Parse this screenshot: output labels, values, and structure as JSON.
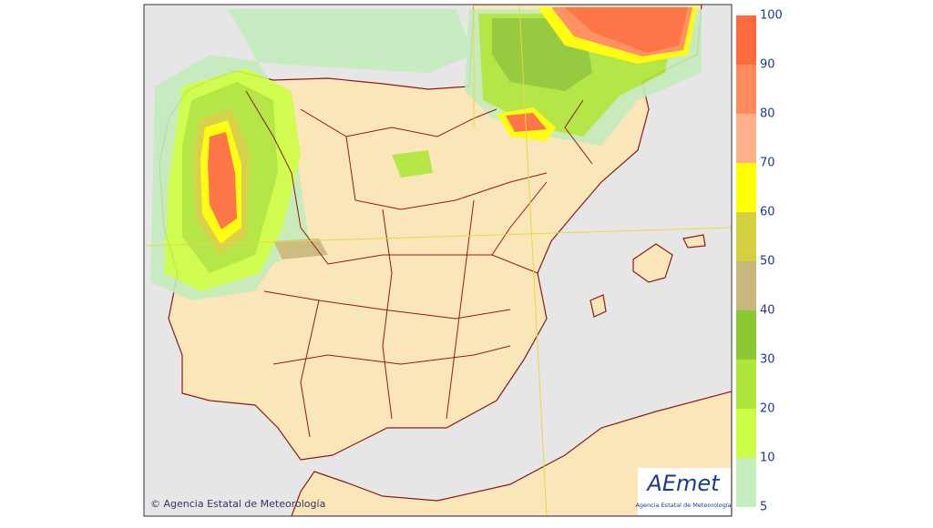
{
  "legend": {
    "ticks": [
      5,
      10,
      20,
      30,
      40,
      50,
      60,
      70,
      80,
      90,
      100
    ],
    "colors": [
      "#c4ecbc",
      "#ccff44",
      "#aee63c",
      "#8cc834",
      "#c8b87c",
      "#d4d040",
      "#ffff00",
      "#ffb088",
      "#ff8a5a",
      "#ff6a3c"
    ]
  },
  "credit": "© Agencia Estatal de Meteorología",
  "logo": {
    "name": "AEmet",
    "subtitle": "Agencia Estatal de Meteorología"
  }
}
